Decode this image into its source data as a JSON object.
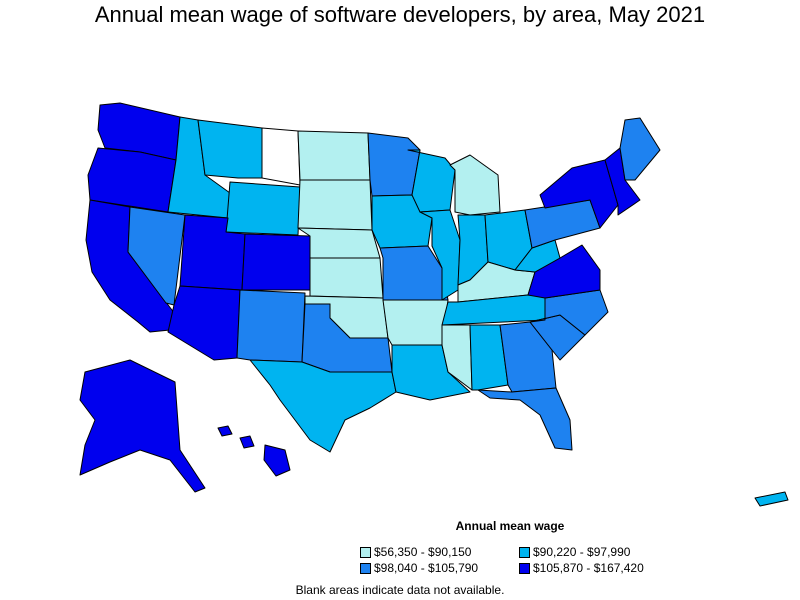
{
  "title": "Annual mean wage of software developers, by area, May 2021",
  "legend": {
    "title": "Annual mean wage",
    "items": [
      {
        "label": "$56,350 - $90,150",
        "color": "#b3f0f0"
      },
      {
        "label": "$90,220 - $97,990",
        "color": "#00b4f0"
      },
      {
        "label": "$98,040 - $105,790",
        "color": "#1e82f0"
      },
      {
        "label": "$105,870 - $167,420",
        "color": "#0000ee"
      }
    ]
  },
  "footnote": "Blank areas indicate data not available.",
  "map": {
    "regions": [
      {
        "name": "washington",
        "class": 3
      },
      {
        "name": "oregon",
        "class": 3
      },
      {
        "name": "california",
        "class": 3
      },
      {
        "name": "nevada",
        "class": 2
      },
      {
        "name": "idaho",
        "class": 1
      },
      {
        "name": "montana-west",
        "class": 1
      },
      {
        "name": "montana-east",
        "class": -1
      },
      {
        "name": "wyoming",
        "class": 1
      },
      {
        "name": "utah",
        "class": 3
      },
      {
        "name": "colorado",
        "class": 3
      },
      {
        "name": "arizona",
        "class": 3
      },
      {
        "name": "new-mexico",
        "class": 2
      },
      {
        "name": "north-dakota",
        "class": 0
      },
      {
        "name": "south-dakota",
        "class": 0
      },
      {
        "name": "nebraska",
        "class": 0
      },
      {
        "name": "kansas",
        "class": 0
      },
      {
        "name": "oklahoma",
        "class": 0
      },
      {
        "name": "texas-north",
        "class": 2
      },
      {
        "name": "texas-south",
        "class": 1
      },
      {
        "name": "minnesota",
        "class": 2
      },
      {
        "name": "iowa",
        "class": 1
      },
      {
        "name": "missouri",
        "class": 2
      },
      {
        "name": "arkansas",
        "class": 0
      },
      {
        "name": "louisiana",
        "class": 1
      },
      {
        "name": "wisconsin",
        "class": 1
      },
      {
        "name": "illinois",
        "class": 1
      },
      {
        "name": "michigan",
        "class": 0
      },
      {
        "name": "indiana",
        "class": 1
      },
      {
        "name": "ohio",
        "class": 1
      },
      {
        "name": "kentucky",
        "class": 0
      },
      {
        "name": "tennessee",
        "class": 1
      },
      {
        "name": "mississippi",
        "class": 0
      },
      {
        "name": "alabama",
        "class": 1
      },
      {
        "name": "georgia",
        "class": 2
      },
      {
        "name": "florida",
        "class": 2
      },
      {
        "name": "south-carolina",
        "class": 2
      },
      {
        "name": "north-carolina",
        "class": 2
      },
      {
        "name": "virginia",
        "class": 3
      },
      {
        "name": "west-virginia",
        "class": 1
      },
      {
        "name": "pennsylvania",
        "class": 2
      },
      {
        "name": "new-york",
        "class": 3
      },
      {
        "name": "new-england",
        "class": 3
      },
      {
        "name": "maine",
        "class": 2
      },
      {
        "name": "alaska",
        "class": 3
      },
      {
        "name": "hawaii",
        "class": 3
      },
      {
        "name": "puerto-rico",
        "class": 1
      }
    ]
  }
}
